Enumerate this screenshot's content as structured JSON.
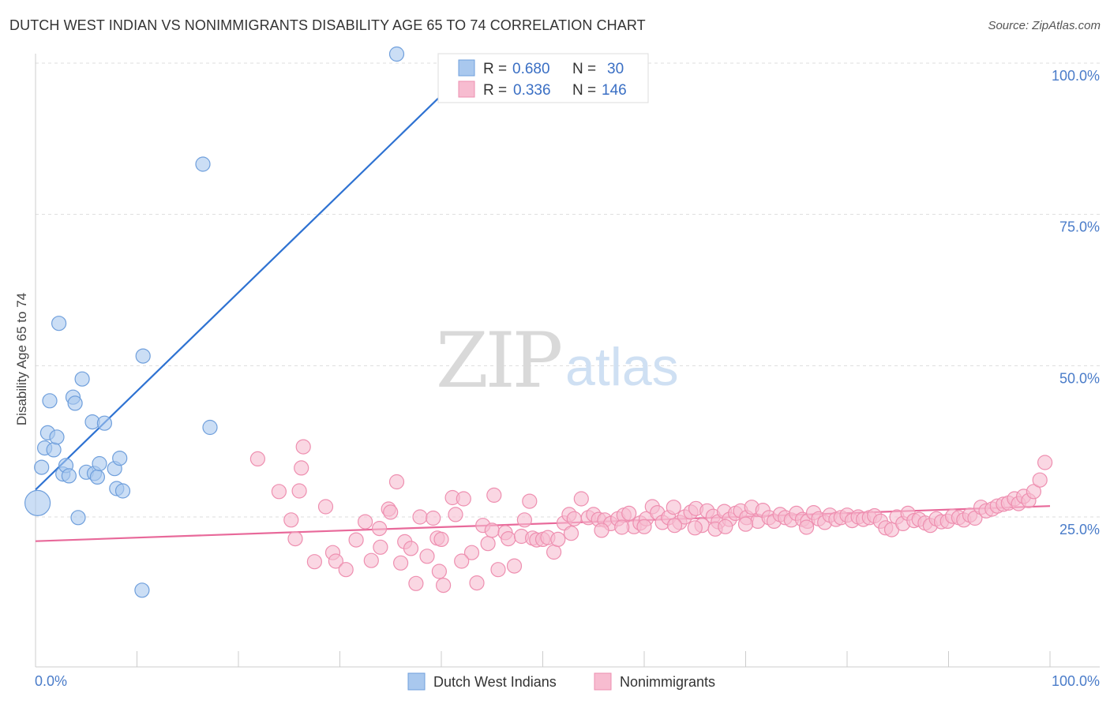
{
  "title": "DUTCH WEST INDIAN VS NONIMMIGRANTS DISABILITY AGE 65 TO 74 CORRELATION CHART",
  "source": "Source: ZipAtlas.com",
  "watermark": {
    "part1": "ZIP",
    "part2": "atlas"
  },
  "legend_top": [
    {
      "r_label": "R =",
      "r_value": "0.680",
      "n_label": "N =",
      "n_value": "30"
    },
    {
      "r_label": "R =",
      "r_value": "0.336",
      "n_label": "N =",
      "n_value": "146"
    }
  ],
  "legend_bottom": [
    "Dutch West Indians",
    "Nonimmigrants"
  ],
  "colors": {
    "blue_fill": "#a9c8ee",
    "blue_stroke": "#6f9fdc",
    "blue_line": "#2e72d2",
    "pink_fill": "#f7bcd0",
    "pink_stroke": "#ee8fb0",
    "pink_line": "#e8699a",
    "grid": "#dddddd",
    "tick_text": "#4a7cc9"
  },
  "chart_data": {
    "type": "scatter",
    "title": "DUTCH WEST INDIAN VS NONIMMIGRANTS DISABILITY AGE 65 TO 74 CORRELATION CHART",
    "xlabel": "",
    "ylabel": "Disability Age 65 to 74",
    "xlim": [
      0,
      100
    ],
    "ylim": [
      0,
      102
    ],
    "x_ticks": [
      "0.0%",
      "100.0%"
    ],
    "y_ticks": [
      {
        "value": 25,
        "label": "25.0%"
      },
      {
        "value": 50,
        "label": "50.0%"
      },
      {
        "value": 75,
        "label": "75.0%"
      },
      {
        "value": 100,
        "label": "100.0%"
      }
    ],
    "grid": true,
    "series": [
      {
        "name": "Dutch West Indians",
        "R": 0.68,
        "N": 30,
        "trend": {
          "x0": 0,
          "y0": 29.5,
          "x1": 40.5,
          "y1": 95.5
        },
        "points": [
          [
            0.2,
            27.3,
            16
          ],
          [
            0.6,
            33.2,
            9
          ],
          [
            0.9,
            36.4,
            9
          ],
          [
            1.2,
            38.9,
            9
          ],
          [
            1.4,
            44.2,
            9
          ],
          [
            1.8,
            36.1,
            9
          ],
          [
            2.1,
            38.2,
            9
          ],
          [
            2.3,
            57.0,
            9
          ],
          [
            2.7,
            32.1,
            9
          ],
          [
            3.0,
            33.5,
            9
          ],
          [
            3.3,
            31.8,
            9
          ],
          [
            3.7,
            44.8,
            9
          ],
          [
            3.9,
            43.8,
            9
          ],
          [
            4.2,
            24.9,
            9
          ],
          [
            4.6,
            47.8,
            9
          ],
          [
            5.0,
            32.4,
            9
          ],
          [
            5.6,
            40.7,
            9
          ],
          [
            5.8,
            32.2,
            9
          ],
          [
            6.1,
            31.6,
            9
          ],
          [
            6.3,
            33.8,
            9
          ],
          [
            6.8,
            40.5,
            9
          ],
          [
            7.8,
            33.0,
            9
          ],
          [
            8.0,
            29.7,
            9
          ],
          [
            8.3,
            34.7,
            9
          ],
          [
            8.6,
            29.3,
            9
          ],
          [
            10.6,
            51.6,
            9
          ],
          [
            10.5,
            12.9,
            9
          ],
          [
            16.5,
            83.3,
            9
          ],
          [
            17.2,
            39.8,
            9
          ],
          [
            35.6,
            101.5,
            9
          ]
        ]
      },
      {
        "name": "Nonimmigrants",
        "R": 0.336,
        "N": 146,
        "trend": {
          "x0": 0,
          "y0": 21.0,
          "x1": 100,
          "y1": 26.8
        },
        "points": [
          [
            21.9,
            34.6,
            9
          ],
          [
            24.0,
            29.2,
            9
          ],
          [
            25.2,
            24.5,
            9
          ],
          [
            25.6,
            21.4,
            9
          ],
          [
            26.0,
            29.3,
            9
          ],
          [
            26.2,
            33.1,
            9
          ],
          [
            26.4,
            36.6,
            9
          ],
          [
            27.5,
            17.6,
            9
          ],
          [
            28.6,
            26.7,
            9
          ],
          [
            29.3,
            19.1,
            9
          ],
          [
            29.6,
            17.7,
            9
          ],
          [
            30.6,
            16.3,
            9
          ],
          [
            31.6,
            21.2,
            9
          ],
          [
            33.1,
            17.8,
            9
          ],
          [
            33.9,
            23.1,
            9
          ],
          [
            34.8,
            26.3,
            9
          ],
          [
            35.0,
            25.8,
            9
          ],
          [
            35.6,
            30.8,
            9
          ],
          [
            36.0,
            17.4,
            9
          ],
          [
            36.4,
            20.9,
            9
          ],
          [
            37.5,
            14.0,
            9
          ],
          [
            37.9,
            25.0,
            9
          ],
          [
            38.6,
            18.5,
            9
          ],
          [
            39.2,
            24.8,
            9
          ],
          [
            39.6,
            21.5,
            9
          ],
          [
            40.0,
            21.3,
            9
          ],
          [
            40.2,
            13.7,
            9
          ],
          [
            41.1,
            28.2,
            9
          ],
          [
            41.4,
            25.4,
            9
          ],
          [
            42.2,
            28.0,
            9
          ],
          [
            43.0,
            19.1,
            9
          ],
          [
            43.5,
            14.1,
            9
          ],
          [
            44.1,
            23.6,
            9
          ],
          [
            44.6,
            20.6,
            9
          ],
          [
            45.0,
            22.8,
            9
          ],
          [
            45.2,
            28.6,
            9
          ],
          [
            45.6,
            16.3,
            9
          ],
          [
            46.3,
            22.4,
            9
          ],
          [
            46.6,
            21.4,
            9
          ],
          [
            47.2,
            16.9,
            9
          ],
          [
            47.9,
            21.8,
            9
          ],
          [
            48.7,
            27.6,
            9
          ],
          [
            49.0,
            21.5,
            9
          ],
          [
            49.4,
            21.2,
            9
          ],
          [
            50.0,
            21.3,
            9
          ],
          [
            50.5,
            21.6,
            9
          ],
          [
            51.1,
            19.2,
            9
          ],
          [
            51.5,
            21.3,
            9
          ],
          [
            52.1,
            24.0,
            9
          ],
          [
            52.6,
            25.4,
            9
          ],
          [
            53.1,
            24.7,
            9
          ],
          [
            53.8,
            28.0,
            9
          ],
          [
            54.5,
            24.9,
            9
          ],
          [
            55.0,
            25.4,
            9
          ],
          [
            55.5,
            24.6,
            9
          ],
          [
            56.1,
            24.5,
            9
          ],
          [
            56.7,
            23.9,
            9
          ],
          [
            57.4,
            24.7,
            9
          ],
          [
            58.0,
            25.3,
            9
          ],
          [
            58.5,
            25.6,
            9
          ],
          [
            59.0,
            23.4,
            9
          ],
          [
            59.6,
            24.0,
            9
          ],
          [
            60.2,
            24.7,
            9
          ],
          [
            60.8,
            26.7,
            9
          ],
          [
            61.3,
            25.7,
            9
          ],
          [
            61.8,
            24.1,
            9
          ],
          [
            62.4,
            24.9,
            9
          ],
          [
            62.9,
            26.6,
            9
          ],
          [
            63.5,
            24.1,
            9
          ],
          [
            64.0,
            25.0,
            9
          ],
          [
            64.6,
            25.8,
            9
          ],
          [
            65.1,
            26.4,
            9
          ],
          [
            65.7,
            23.6,
            9
          ],
          [
            66.2,
            26.0,
            9
          ],
          [
            66.8,
            25.1,
            9
          ],
          [
            67.3,
            24.2,
            9
          ],
          [
            67.9,
            25.9,
            9
          ],
          [
            68.4,
            24.6,
            9
          ],
          [
            69.0,
            25.6,
            9
          ],
          [
            69.5,
            26.0,
            9
          ],
          [
            70.1,
            24.9,
            9
          ],
          [
            70.6,
            26.6,
            9
          ],
          [
            71.2,
            24.3,
            9
          ],
          [
            71.7,
            26.1,
            9
          ],
          [
            72.3,
            24.9,
            9
          ],
          [
            72.8,
            24.3,
            9
          ],
          [
            73.4,
            25.4,
            9
          ],
          [
            73.9,
            24.9,
            9
          ],
          [
            74.5,
            24.5,
            9
          ],
          [
            75.0,
            25.6,
            9
          ],
          [
            75.6,
            24.6,
            9
          ],
          [
            76.1,
            24.3,
            9
          ],
          [
            76.7,
            25.7,
            9
          ],
          [
            77.2,
            24.7,
            9
          ],
          [
            77.8,
            24.1,
            9
          ],
          [
            78.3,
            25.3,
            9
          ],
          [
            78.9,
            24.6,
            9
          ],
          [
            79.4,
            24.9,
            9
          ],
          [
            80.0,
            25.3,
            9
          ],
          [
            80.5,
            24.4,
            9
          ],
          [
            81.1,
            25.0,
            9
          ],
          [
            81.6,
            24.6,
            9
          ],
          [
            82.2,
            24.9,
            9
          ],
          [
            82.7,
            25.2,
            9
          ],
          [
            83.3,
            24.3,
            9
          ],
          [
            83.8,
            23.2,
            9
          ],
          [
            84.4,
            22.9,
            9
          ],
          [
            84.9,
            25.0,
            9
          ],
          [
            85.5,
            23.9,
            9
          ],
          [
            86.0,
            25.6,
            9
          ],
          [
            86.6,
            24.4,
            9
          ],
          [
            87.1,
            24.6,
            9
          ],
          [
            87.7,
            24.0,
            9
          ],
          [
            88.2,
            23.6,
            9
          ],
          [
            88.8,
            24.7,
            9
          ],
          [
            89.3,
            24.2,
            9
          ],
          [
            89.9,
            24.3,
            9
          ],
          [
            90.4,
            25.1,
            9
          ],
          [
            91.0,
            24.9,
            9
          ],
          [
            91.5,
            24.5,
            9
          ],
          [
            92.1,
            25.3,
            9
          ],
          [
            92.6,
            24.8,
            9
          ],
          [
            93.2,
            26.6,
            9
          ],
          [
            93.7,
            26.0,
            9
          ],
          [
            94.3,
            26.3,
            9
          ],
          [
            94.8,
            26.8,
            9
          ],
          [
            95.4,
            27.1,
            9
          ],
          [
            95.9,
            27.3,
            9
          ],
          [
            96.5,
            28.0,
            9
          ],
          [
            96.9,
            27.2,
            9
          ],
          [
            97.4,
            28.4,
            9
          ],
          [
            97.9,
            27.7,
            9
          ],
          [
            98.4,
            29.2,
            9
          ],
          [
            99.0,
            31.1,
            9
          ],
          [
            99.5,
            34.0,
            9
          ],
          [
            32.5,
            24.2,
            9
          ],
          [
            34.0,
            20.0,
            9
          ],
          [
            37.0,
            19.8,
            9
          ],
          [
            39.8,
            16.0,
            9
          ],
          [
            42.0,
            17.7,
            9
          ],
          [
            48.2,
            24.5,
            9
          ],
          [
            52.8,
            22.3,
            9
          ],
          [
            55.8,
            22.8,
            9
          ],
          [
            57.8,
            23.3,
            9
          ],
          [
            60.0,
            23.4,
            9
          ],
          [
            63.0,
            23.6,
            9
          ],
          [
            65.0,
            23.2,
            9
          ],
          [
            67.0,
            23.0,
            9
          ],
          [
            68.0,
            23.4,
            9
          ],
          [
            70.0,
            23.8,
            9
          ],
          [
            76.0,
            23.3,
            9
          ]
        ]
      }
    ]
  }
}
